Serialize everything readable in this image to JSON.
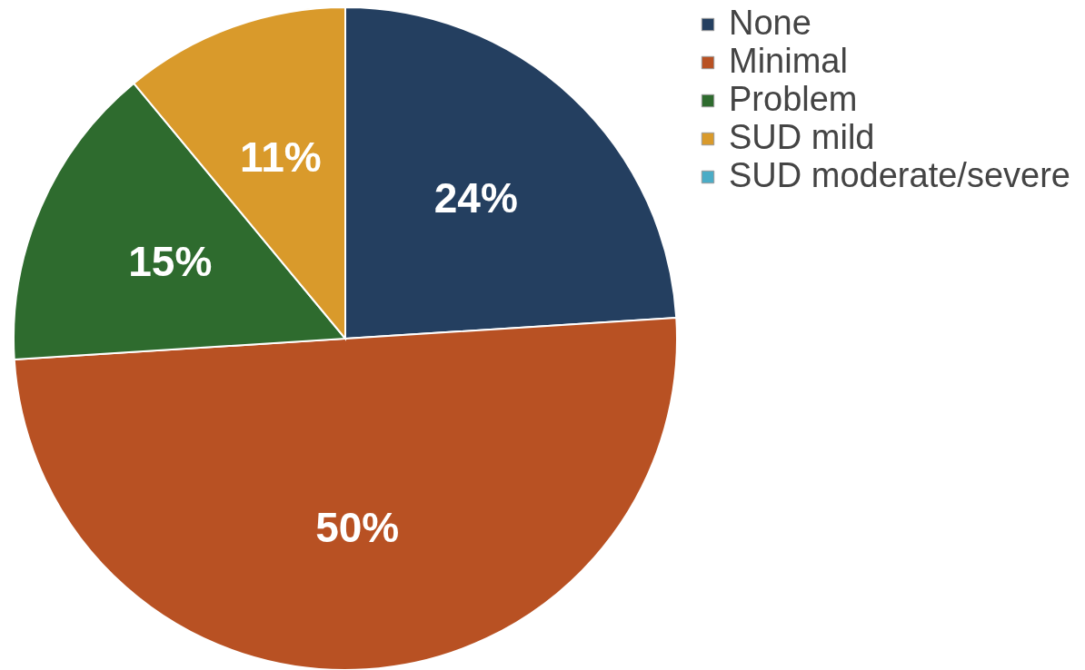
{
  "chart_data": {
    "type": "pie",
    "categories": [
      "None",
      "Minimal",
      "Problem",
      "SUD mild",
      "SUD moderate/severe"
    ],
    "values": [
      24,
      50,
      15,
      11,
      0
    ],
    "colors": [
      "#243f60",
      "#b85123",
      "#2e6b2e",
      "#d99a2b",
      "#4bacc6"
    ],
    "value_labels": [
      "24%",
      "50%",
      "15%",
      "11%",
      null
    ],
    "legend": "right"
  }
}
